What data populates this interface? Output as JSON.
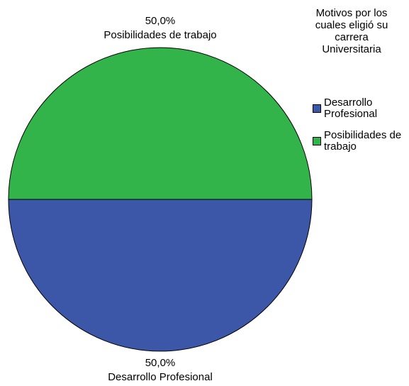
{
  "chart_data": {
    "type": "pie",
    "legend_title": "Motivos por los cuales eligió su carrera Universitaria",
    "categories": [
      "Desarrollo Profesional",
      "Posibilidades de trabajo"
    ],
    "values": [
      50,
      50
    ],
    "value_labels": [
      "50,0%",
      "50,0%"
    ],
    "colors": [
      "#3c56a8",
      "#33b44a"
    ],
    "legend": "right"
  }
}
